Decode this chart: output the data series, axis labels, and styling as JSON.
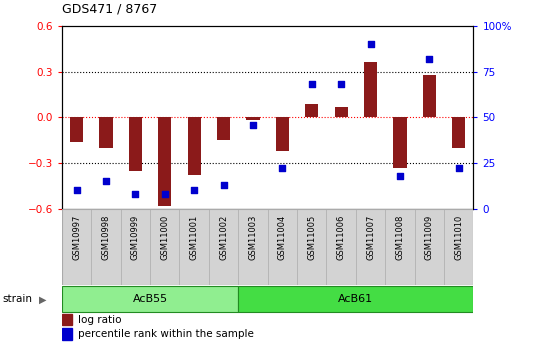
{
  "title": "GDS471 / 8767",
  "samples": [
    "GSM10997",
    "GSM10998",
    "GSM10999",
    "GSM11000",
    "GSM11001",
    "GSM11002",
    "GSM11003",
    "GSM11004",
    "GSM11005",
    "GSM11006",
    "GSM11007",
    "GSM11008",
    "GSM11009",
    "GSM11010"
  ],
  "log_ratio": [
    -0.16,
    -0.2,
    -0.35,
    -0.58,
    -0.38,
    -0.15,
    -0.02,
    -0.22,
    0.09,
    0.07,
    0.36,
    -0.33,
    0.28,
    -0.2
  ],
  "percentile_rank": [
    10,
    15,
    8,
    8,
    10,
    13,
    46,
    22,
    68,
    68,
    90,
    18,
    82,
    22
  ],
  "groups": [
    {
      "label": "AcB55",
      "start": 0,
      "end": 6,
      "color": "#90EE90"
    },
    {
      "label": "AcB61",
      "start": 6,
      "end": 14,
      "color": "#44DD44"
    }
  ],
  "bar_color": "#8B1A1A",
  "dot_color": "#0000CD",
  "ylim_left": [
    -0.6,
    0.6
  ],
  "ylim_right": [
    0,
    100
  ],
  "yticks_left": [
    -0.6,
    -0.3,
    0.0,
    0.3,
    0.6
  ],
  "yticks_right": [
    0,
    25,
    50,
    75,
    100
  ],
  "ytick_labels_right": [
    "0",
    "25",
    "50",
    "75",
    "100%"
  ],
  "hlines": [
    0.3,
    0.0,
    -0.3
  ],
  "hline_colors": [
    "black",
    "red",
    "black"
  ],
  "hline_styles": [
    "dotted",
    "dotted",
    "dotted"
  ],
  "legend_entries": [
    "log ratio",
    "percentile rank within the sample"
  ],
  "legend_colors": [
    "#8B1A1A",
    "#0000CD"
  ],
  "strain_label": "strain",
  "background_color": "#ffffff",
  "plot_bg_color": "#ffffff",
  "label_bg_color": "#d3d3d3",
  "bar_width": 0.45
}
